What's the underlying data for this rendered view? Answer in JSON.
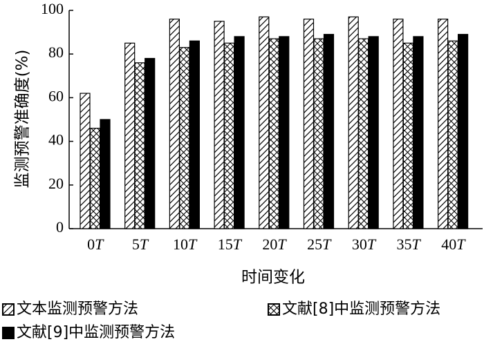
{
  "chart_data": {
    "type": "bar",
    "categories": [
      {
        "num": "0",
        "unit": "T"
      },
      {
        "num": "5",
        "unit": "T"
      },
      {
        "num": "10",
        "unit": "T"
      },
      {
        "num": "15",
        "unit": "T"
      },
      {
        "num": "20",
        "unit": "T"
      },
      {
        "num": "25",
        "unit": "T"
      },
      {
        "num": "30",
        "unit": "T"
      },
      {
        "num": "35",
        "unit": "T"
      },
      {
        "num": "40",
        "unit": "T"
      }
    ],
    "series": [
      {
        "name": "文本监测预警方法",
        "pattern": "diagonal-hatch",
        "values": [
          62,
          85,
          96,
          95,
          97,
          96,
          97,
          96,
          96
        ]
      },
      {
        "name": "文献[8]中监测预警方法",
        "pattern": "cross-hatch",
        "values": [
          46,
          76,
          83,
          85,
          87,
          87,
          87,
          85,
          86
        ]
      },
      {
        "name": "文献[9]中监测预警方法",
        "pattern": "solid-black",
        "values": [
          50,
          78,
          86,
          88,
          88,
          89,
          88,
          88,
          89
        ]
      }
    ],
    "title": "",
    "xlabel": "时间变化",
    "ylabel": "监测预警准确度(%)",
    "ylim": [
      0,
      100
    ],
    "yticks": [
      0,
      20,
      40,
      60,
      80,
      100
    ],
    "grid": false,
    "legend_position": "bottom"
  }
}
